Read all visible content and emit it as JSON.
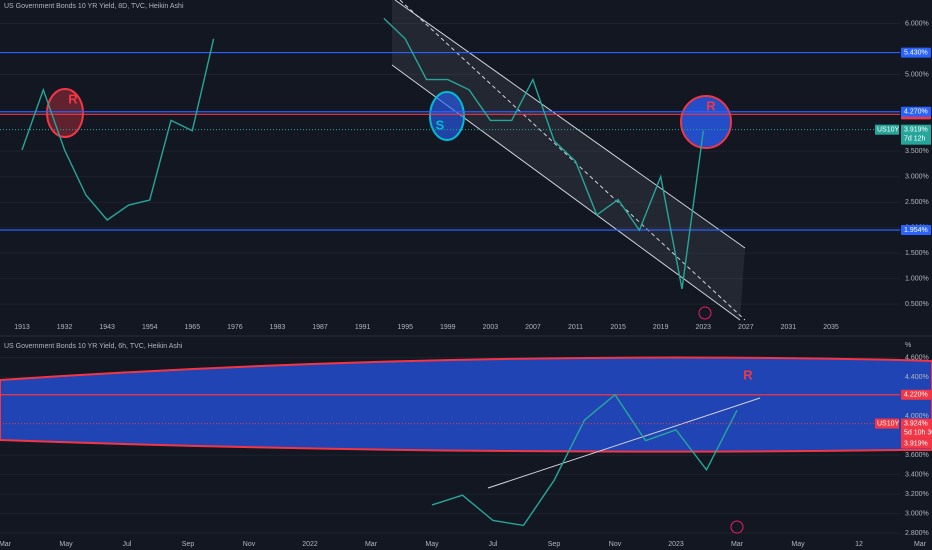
{
  "chart_data": [
    {
      "type": "line",
      "title": "US Government Bonds 10 YR Yield, 8D, TVC, Heikin Ashi",
      "categories": [
        "1913",
        null,
        "1932",
        null,
        "1943",
        null,
        "1954",
        null,
        "1965",
        null,
        "1976",
        null,
        "1983",
        null,
        "1987",
        null,
        "1991",
        null,
        "1995",
        null,
        "1999",
        null,
        "2003",
        null,
        "2007",
        null,
        "2011",
        null,
        "2015",
        null,
        "2019",
        null,
        "2023",
        null,
        "2027",
        null,
        "2031",
        null,
        "2035"
      ],
      "series": [
        {
          "name": "US10Y",
          "color": "#26a69a",
          "values": [
            3.52,
            4.7,
            3.52,
            2.64,
            2.15,
            2.44,
            2.54,
            4.1,
            3.9,
            5.7,
            null,
            null,
            null,
            null,
            null,
            null,
            null,
            6.1,
            5.7,
            4.9,
            4.9,
            4.7,
            4.1,
            4.1,
            4.9,
            3.7,
            3.3,
            2.25,
            2.55,
            1.95,
            3.0,
            0.8,
            3.9,
            null,
            null,
            null,
            null,
            null,
            null
          ]
        }
      ],
      "ylim": [
        0.19,
        6.46
      ],
      "yticks": [
        {
          "value": 0.5,
          "label": "0.500%"
        },
        {
          "value": 1.0,
          "label": "1.000%"
        },
        {
          "value": 1.5,
          "label": "1.500%"
        },
        {
          "value": 2.0,
          "label": "2.000%"
        },
        {
          "value": 2.5,
          "label": "2.500%"
        },
        {
          "value": 3.0,
          "label": "3.000%"
        },
        {
          "value": 3.5,
          "label": "3.500%"
        },
        {
          "value": 5.0,
          "label": "5.000%"
        },
        {
          "value": 6.0,
          "label": "6.000%"
        }
      ],
      "grid": true,
      "levels": [
        {
          "value": 5.43,
          "label": "5.430%",
          "color": "#2962ff"
        },
        {
          "value": 4.22,
          "label": "4.220%",
          "color": "#f23645"
        },
        {
          "value": 4.27,
          "label": "4.270%",
          "color": "#2962ff"
        },
        {
          "value": 1.954,
          "label": "1.954%",
          "color": "#2962ff"
        }
      ],
      "current": {
        "value": 3.919,
        "label": "3.919%",
        "countdown": "7d 12h"
      },
      "annotations": [
        "R",
        "S",
        "R"
      ]
    },
    {
      "type": "line",
      "title": "US Government Bonds 10 YR Yield, 6h, TVC, Heikin Ashi",
      "unit": "%",
      "categories": [
        "Mar",
        null,
        "May",
        null,
        "Jul",
        null,
        "Sep",
        null,
        "Nov",
        null,
        "2022",
        null,
        "Mar",
        null,
        "May",
        null,
        "Jul",
        null,
        "Sep",
        null,
        "Nov",
        null,
        "2023",
        null,
        "Mar",
        null,
        "May",
        null,
        "12",
        null,
        "Mar"
      ],
      "series": [
        {
          "name": "US10Y",
          "color": "#26a69a",
          "values": [
            null,
            null,
            null,
            null,
            null,
            null,
            null,
            null,
            null,
            null,
            null,
            null,
            null,
            null,
            3.09,
            3.19,
            2.93,
            2.88,
            3.34,
            3.96,
            4.22,
            3.75,
            3.86,
            3.45,
            4.06,
            null,
            null,
            null,
            null,
            null,
            null
          ]
        }
      ],
      "ylim": [
        2.73,
        4.73
      ],
      "yticks": [
        {
          "value": 2.8,
          "label": "2.800%"
        },
        {
          "value": 3.0,
          "label": "3.000%"
        },
        {
          "value": 3.2,
          "label": "3.200%"
        },
        {
          "value": 3.4,
          "label": "3.400%"
        },
        {
          "value": 3.6,
          "label": "3.600%"
        },
        {
          "value": 4.0,
          "label": "4.000%"
        },
        {
          "value": 4.4,
          "label": "4.400%"
        },
        {
          "value": 4.6,
          "label": "4.600%"
        }
      ],
      "grid": true,
      "levels": [
        {
          "value": 4.22,
          "label": "4.220%",
          "color": "#f23645"
        }
      ],
      "current": {
        "value": 3.924,
        "label": "3.924%",
        "countdown": "5d 10h 30",
        "color": "#f23645"
      },
      "labels": [
        "3.919%"
      ],
      "annotations": [
        "R"
      ]
    }
  ]
}
